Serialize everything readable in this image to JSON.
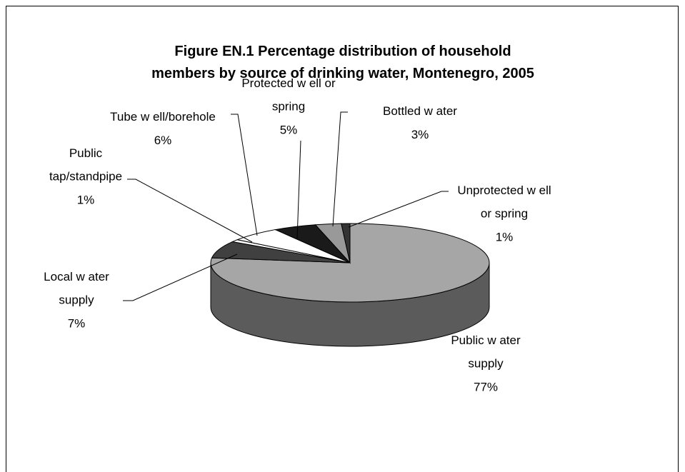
{
  "chart_data": {
    "type": "pie",
    "title": "Figure EN.1 Percentage distribution of household members by source of drinking water, Montenegro, 2005",
    "categories": [
      "Public w ater supply",
      "Local w ater supply",
      "Public tap/standpipe",
      "Tube w ell/borehole",
      "Protected w ell or spring",
      "Bottled w ater",
      "Unprotected w ell or spring"
    ],
    "values": [
      77,
      7,
      1,
      6,
      5,
      3,
      1
    ],
    "value_labels": [
      "77%",
      "7%",
      "1%",
      "6%",
      "5%",
      "3%",
      "1%"
    ],
    "colors": [
      "#a6a6a6",
      "#404040",
      "#ffffff",
      "#ffffff",
      "#1a1a1a",
      "#999999",
      "#333333"
    ],
    "three_d": true
  }
}
